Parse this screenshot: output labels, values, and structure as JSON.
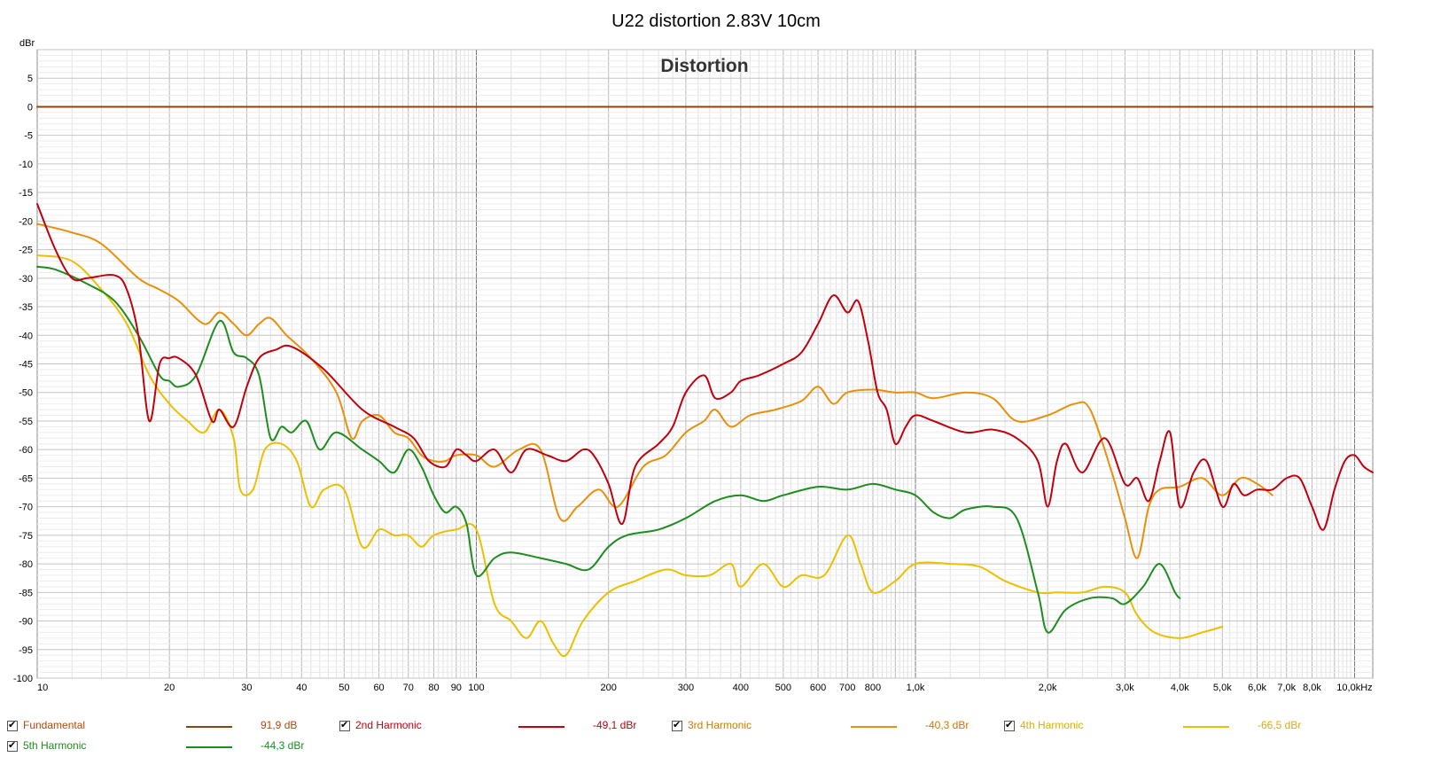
{
  "chart_data": {
    "type": "line",
    "title": "U22 distortion 2.83V 10cm",
    "subtitle": "Distortion",
    "ylabel": "dBr",
    "xunit": "Hz",
    "xscale": "log",
    "xlim": [
      10,
      11000
    ],
    "ylim": [
      -100,
      10
    ],
    "grid": true,
    "xticks": [
      {
        "v": 10,
        "l": "10"
      },
      {
        "v": 20,
        "l": "20"
      },
      {
        "v": 30,
        "l": "30"
      },
      {
        "v": 40,
        "l": "40"
      },
      {
        "v": 50,
        "l": "50"
      },
      {
        "v": 60,
        "l": "60"
      },
      {
        "v": 70,
        "l": "70"
      },
      {
        "v": 80,
        "l": "80"
      },
      {
        "v": 90,
        "l": "90"
      },
      {
        "v": 100,
        "l": "100"
      },
      {
        "v": 200,
        "l": "200"
      },
      {
        "v": 300,
        "l": "300"
      },
      {
        "v": 400,
        "l": "400"
      },
      {
        "v": 500,
        "l": "500"
      },
      {
        "v": 600,
        "l": "600"
      },
      {
        "v": 700,
        "l": "700"
      },
      {
        "v": 800,
        "l": "800"
      },
      {
        "v": 1000,
        "l": "1,0k"
      },
      {
        "v": 2000,
        "l": "2,0k"
      },
      {
        "v": 3000,
        "l": "3,0k"
      },
      {
        "v": 4000,
        "l": "4,0k"
      },
      {
        "v": 5000,
        "l": "5,0k"
      },
      {
        "v": 6000,
        "l": "6,0k"
      },
      {
        "v": 7000,
        "l": "7,0k"
      },
      {
        "v": 8000,
        "l": "8,0k"
      },
      {
        "v": 10000,
        "l": "10,0kHz"
      }
    ],
    "yticks": [
      5,
      0,
      -5,
      -10,
      -15,
      -20,
      -25,
      -30,
      -35,
      -40,
      -45,
      -50,
      -55,
      -60,
      -65,
      -70,
      -75,
      -80,
      -85,
      -90,
      -95,
      -100
    ],
    "series": [
      {
        "name": "Fundamental",
        "color": "#8b4513",
        "legend_value": "91,9 dB",
        "points": [
          [
            10,
            0
          ],
          [
            11000,
            0
          ]
        ]
      },
      {
        "name": "2nd Harmonic",
        "color": "#c0000f",
        "legend_value": "-49,1 dBr",
        "points": [
          [
            10,
            -17
          ],
          [
            11,
            -25
          ],
          [
            12,
            -30
          ],
          [
            13,
            -30
          ],
          [
            15,
            -29.5
          ],
          [
            16,
            -32
          ],
          [
            17,
            -40
          ],
          [
            18,
            -55
          ],
          [
            19,
            -45
          ],
          [
            20,
            -44
          ],
          [
            21,
            -44
          ],
          [
            23,
            -47
          ],
          [
            25,
            -55
          ],
          [
            26,
            -53
          ],
          [
            28,
            -56
          ],
          [
            30,
            -49
          ],
          [
            32,
            -44
          ],
          [
            35,
            -42.5
          ],
          [
            38,
            -42
          ],
          [
            45,
            -46
          ],
          [
            55,
            -53
          ],
          [
            65,
            -56
          ],
          [
            72,
            -58
          ],
          [
            78,
            -62
          ],
          [
            85,
            -63
          ],
          [
            90,
            -60
          ],
          [
            95,
            -61
          ],
          [
            100,
            -62
          ],
          [
            110,
            -60
          ],
          [
            120,
            -64
          ],
          [
            130,
            -60
          ],
          [
            145,
            -61
          ],
          [
            160,
            -62
          ],
          [
            175,
            -60
          ],
          [
            185,
            -61
          ],
          [
            200,
            -66
          ],
          [
            215,
            -73
          ],
          [
            230,
            -63
          ],
          [
            260,
            -59
          ],
          [
            280,
            -56
          ],
          [
            300,
            -50
          ],
          [
            330,
            -47
          ],
          [
            350,
            -51
          ],
          [
            380,
            -50
          ],
          [
            400,
            -48
          ],
          [
            440,
            -47
          ],
          [
            500,
            -45
          ],
          [
            550,
            -43
          ],
          [
            600,
            -38
          ],
          [
            650,
            -33
          ],
          [
            700,
            -36
          ],
          [
            740,
            -34
          ],
          [
            780,
            -41
          ],
          [
            820,
            -50
          ],
          [
            860,
            -53
          ],
          [
            900,
            -59
          ],
          [
            950,
            -56
          ],
          [
            1000,
            -54
          ],
          [
            1100,
            -55
          ],
          [
            1300,
            -57
          ],
          [
            1500,
            -56.5
          ],
          [
            1700,
            -58
          ],
          [
            1900,
            -62
          ],
          [
            2000,
            -70
          ],
          [
            2100,
            -62
          ],
          [
            2200,
            -59
          ],
          [
            2400,
            -64
          ],
          [
            2700,
            -58
          ],
          [
            3000,
            -66
          ],
          [
            3200,
            -65
          ],
          [
            3400,
            -69
          ],
          [
            3600,
            -62
          ],
          [
            3800,
            -57
          ],
          [
            4000,
            -70
          ],
          [
            4300,
            -64
          ],
          [
            4600,
            -62
          ],
          [
            5000,
            -70
          ],
          [
            5300,
            -66
          ],
          [
            5600,
            -68
          ],
          [
            6000,
            -67
          ],
          [
            6500,
            -67
          ],
          [
            7000,
            -65
          ],
          [
            7500,
            -65
          ],
          [
            8000,
            -70
          ],
          [
            8500,
            -74
          ],
          [
            9000,
            -67
          ],
          [
            9500,
            -62
          ],
          [
            10000,
            -61
          ],
          [
            10500,
            -63
          ],
          [
            11000,
            -64
          ]
        ]
      },
      {
        "name": "3rd Harmonic",
        "color": "#e8900a",
        "legend_value": "-40,3 dBr",
        "points": [
          [
            10,
            -20.5
          ],
          [
            12,
            -22
          ],
          [
            14,
            -24
          ],
          [
            17,
            -30
          ],
          [
            19,
            -32
          ],
          [
            21,
            -34
          ],
          [
            24,
            -38
          ],
          [
            26,
            -36
          ],
          [
            28,
            -38
          ],
          [
            30,
            -40
          ],
          [
            32,
            -38
          ],
          [
            34,
            -37
          ],
          [
            37,
            -40
          ],
          [
            42,
            -44
          ],
          [
            48,
            -50
          ],
          [
            52,
            -58
          ],
          [
            55,
            -55
          ],
          [
            60,
            -54
          ],
          [
            65,
            -57
          ],
          [
            70,
            -58
          ],
          [
            75,
            -61
          ],
          [
            80,
            -62
          ],
          [
            85,
            -62
          ],
          [
            90,
            -61
          ],
          [
            100,
            -61
          ],
          [
            110,
            -63
          ],
          [
            125,
            -60
          ],
          [
            140,
            -60
          ],
          [
            155,
            -72
          ],
          [
            170,
            -70
          ],
          [
            190,
            -67
          ],
          [
            210,
            -70
          ],
          [
            240,
            -63
          ],
          [
            270,
            -61
          ],
          [
            300,
            -57
          ],
          [
            330,
            -55
          ],
          [
            350,
            -53
          ],
          [
            380,
            -56
          ],
          [
            420,
            -54
          ],
          [
            480,
            -53
          ],
          [
            550,
            -51.5
          ],
          [
            600,
            -49
          ],
          [
            650,
            -52
          ],
          [
            700,
            -50
          ],
          [
            800,
            -49.5
          ],
          [
            900,
            -50
          ],
          [
            1000,
            -50
          ],
          [
            1100,
            -51
          ],
          [
            1300,
            -50
          ],
          [
            1500,
            -51
          ],
          [
            1700,
            -55
          ],
          [
            2000,
            -54
          ],
          [
            2300,
            -52
          ],
          [
            2500,
            -53
          ],
          [
            2800,
            -64
          ],
          [
            3000,
            -72
          ],
          [
            3200,
            -79
          ],
          [
            3400,
            -70
          ],
          [
            3600,
            -67
          ],
          [
            4000,
            -66.5
          ],
          [
            4500,
            -65
          ],
          [
            5000,
            -68
          ],
          [
            5500,
            -65
          ],
          [
            6000,
            -66
          ],
          [
            6500,
            -68
          ]
        ]
      },
      {
        "name": "4th Harmonic",
        "color": "#ebc000",
        "legend_value": "-66,5 dBr",
        "points": [
          [
            10,
            -26
          ],
          [
            12,
            -27
          ],
          [
            14,
            -32
          ],
          [
            16,
            -38
          ],
          [
            18,
            -47
          ],
          [
            20,
            -52
          ],
          [
            22,
            -55
          ],
          [
            24,
            -57
          ],
          [
            26,
            -53
          ],
          [
            28,
            -58
          ],
          [
            29,
            -67
          ],
          [
            31,
            -67
          ],
          [
            33,
            -60
          ],
          [
            36,
            -59
          ],
          [
            39,
            -62
          ],
          [
            42,
            -70
          ],
          [
            45,
            -67
          ],
          [
            50,
            -67
          ],
          [
            55,
            -77
          ],
          [
            60,
            -74
          ],
          [
            65,
            -75
          ],
          [
            70,
            -75
          ],
          [
            75,
            -77
          ],
          [
            80,
            -75
          ],
          [
            90,
            -74
          ],
          [
            100,
            -74
          ],
          [
            110,
            -87
          ],
          [
            120,
            -90
          ],
          [
            130,
            -93
          ],
          [
            140,
            -90
          ],
          [
            150,
            -94
          ],
          [
            160,
            -96
          ],
          [
            175,
            -90
          ],
          [
            200,
            -85
          ],
          [
            230,
            -83
          ],
          [
            270,
            -81
          ],
          [
            300,
            -82
          ],
          [
            340,
            -82
          ],
          [
            380,
            -80
          ],
          [
            400,
            -84
          ],
          [
            450,
            -80
          ],
          [
            500,
            -84
          ],
          [
            550,
            -82
          ],
          [
            620,
            -82
          ],
          [
            700,
            -75
          ],
          [
            750,
            -80
          ],
          [
            800,
            -85
          ],
          [
            900,
            -83
          ],
          [
            1000,
            -80
          ],
          [
            1200,
            -80
          ],
          [
            1400,
            -80.5
          ],
          [
            1600,
            -83
          ],
          [
            1900,
            -85
          ],
          [
            2100,
            -85
          ],
          [
            2400,
            -85
          ],
          [
            2700,
            -84
          ],
          [
            3000,
            -85
          ],
          [
            3200,
            -89
          ],
          [
            3500,
            -92
          ],
          [
            4000,
            -93
          ],
          [
            4500,
            -92
          ],
          [
            5000,
            -91
          ]
        ]
      },
      {
        "name": "5th Harmonic",
        "color": "#1e8c1e",
        "legend_value": "-44,3 dBr",
        "points": [
          [
            10,
            -28
          ],
          [
            11,
            -28.5
          ],
          [
            13,
            -31
          ],
          [
            15,
            -34
          ],
          [
            17,
            -40
          ],
          [
            19,
            -47
          ],
          [
            20,
            -48
          ],
          [
            21,
            -49
          ],
          [
            23,
            -47
          ],
          [
            26,
            -37.5
          ],
          [
            28,
            -43
          ],
          [
            30,
            -44
          ],
          [
            32,
            -47
          ],
          [
            34,
            -58
          ],
          [
            36,
            -56
          ],
          [
            38,
            -57
          ],
          [
            41,
            -55
          ],
          [
            44,
            -60
          ],
          [
            48,
            -57
          ],
          [
            55,
            -60
          ],
          [
            60,
            -62
          ],
          [
            65,
            -64
          ],
          [
            70,
            -60
          ],
          [
            75,
            -63
          ],
          [
            80,
            -68
          ],
          [
            85,
            -71
          ],
          [
            90,
            -70
          ],
          [
            95,
            -73
          ],
          [
            100,
            -82
          ],
          [
            110,
            -79
          ],
          [
            120,
            -78
          ],
          [
            140,
            -79
          ],
          [
            160,
            -80
          ],
          [
            180,
            -81
          ],
          [
            200,
            -77
          ],
          [
            220,
            -75
          ],
          [
            260,
            -74
          ],
          [
            300,
            -72
          ],
          [
            350,
            -69
          ],
          [
            400,
            -68
          ],
          [
            450,
            -69
          ],
          [
            500,
            -68
          ],
          [
            600,
            -66.5
          ],
          [
            700,
            -67
          ],
          [
            800,
            -66
          ],
          [
            900,
            -67
          ],
          [
            1000,
            -68
          ],
          [
            1100,
            -71
          ],
          [
            1200,
            -72
          ],
          [
            1300,
            -70.5
          ],
          [
            1500,
            -70
          ],
          [
            1700,
            -72
          ],
          [
            1900,
            -85
          ],
          [
            2000,
            -92
          ],
          [
            2200,
            -88
          ],
          [
            2500,
            -86
          ],
          [
            2800,
            -86
          ],
          [
            3000,
            -87
          ],
          [
            3300,
            -84
          ],
          [
            3600,
            -80
          ],
          [
            3900,
            -85
          ],
          [
            4000,
            -86
          ]
        ]
      }
    ]
  },
  "legend": [
    {
      "label": "Fundamental",
      "value": "91,9 dB",
      "checked": true
    },
    {
      "label": "2nd Harmonic",
      "value": "-49,1 dBr",
      "checked": true
    },
    {
      "label": "3rd Harmonic",
      "value": "-40,3 dBr",
      "checked": true
    },
    {
      "label": "4th Harmonic",
      "value": "-66,5 dBr",
      "checked": true
    },
    {
      "label": "5th Harmonic",
      "value": "-44,3 dBr",
      "checked": true
    }
  ]
}
